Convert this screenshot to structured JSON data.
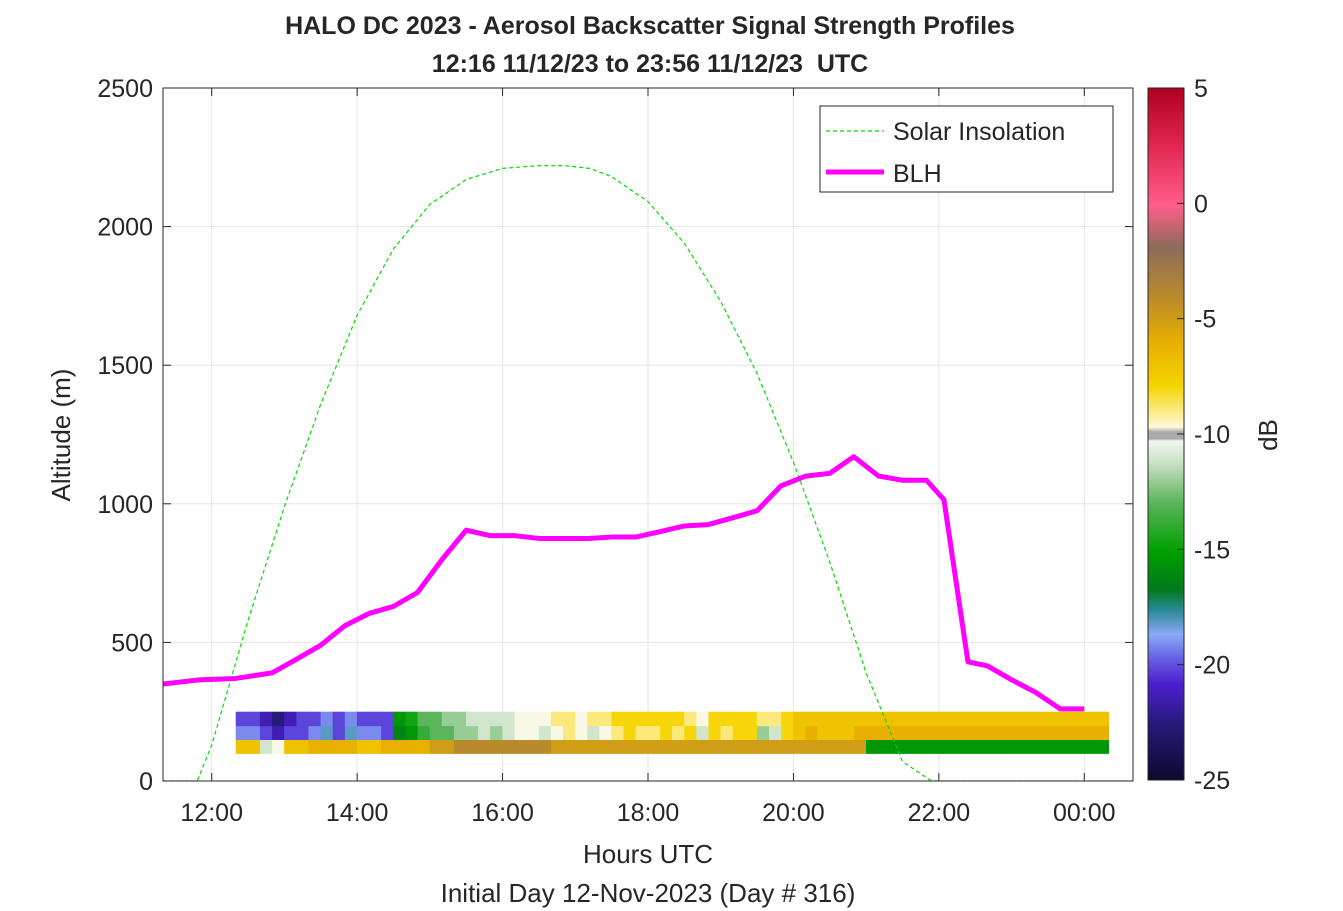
{
  "chart_data": {
    "type": "heatmap",
    "title": "HALO DC 2023 - Aerosol Backscatter Signal Strength Profiles",
    "subtitle": "12:16 11/12/23 to 23:56 11/12/23  UTC",
    "xlabel": "Hours UTC",
    "footnote": "Initial Day 12-Nov-2023 (Day # 316)",
    "ylabel": "Altitude (m)",
    "colorbar_label": "dB",
    "xlim": [
      11.33,
      24.67
    ],
    "ylim": [
      0,
      2500
    ],
    "x_ticks": [
      {
        "value": 12,
        "label": "12:00"
      },
      {
        "value": 14,
        "label": "14:00"
      },
      {
        "value": 16,
        "label": "16:00"
      },
      {
        "value": 18,
        "label": "18:00"
      },
      {
        "value": 20,
        "label": "20:00"
      },
      {
        "value": 22,
        "label": "22:00"
      },
      {
        "value": 24,
        "label": "00:00"
      }
    ],
    "y_ticks": [
      0,
      500,
      1000,
      1500,
      2000,
      2500
    ],
    "colorbar_range": [
      -25,
      5
    ],
    "colorbar_ticks": [
      -25,
      -20,
      -15,
      -10,
      -5,
      0,
      5
    ],
    "grid": true,
    "legend_position": "top-right",
    "heatmap": {
      "x_start_hours": 12.33,
      "x_step_hours": 0.1667,
      "y_start_m": 100,
      "y_step_m": 50,
      "note": "rows listed from lowest altitude (100 m) upward; values in dB",
      "rows": [
        [
          -7,
          -7,
          -11,
          -10,
          -7,
          -7,
          -6,
          -6,
          -6,
          -6,
          -7,
          -7,
          -6,
          -6,
          -6,
          -6,
          -5,
          -5,
          -4,
          -4,
          -4,
          -4,
          -4,
          -4,
          -4,
          -4,
          -5,
          -5,
          -5,
          -5,
          -5,
          -5,
          -5,
          -5,
          -5,
          -5,
          -5,
          -5,
          -5,
          -5,
          -5,
          -5,
          -5,
          -5,
          -5,
          -5,
          -5,
          -5,
          -5,
          -5,
          -5,
          -5,
          -16,
          -16,
          -16,
          -16,
          -16,
          -16,
          -16,
          -16,
          -16,
          -16,
          -16,
          -16,
          -16,
          -16,
          -16,
          -16,
          -16,
          -16,
          -16,
          -16
        ],
        [
          -20,
          -20,
          -21,
          -22,
          -21,
          -21,
          -20,
          -19,
          -21,
          -19,
          -20,
          -20,
          -21,
          -17,
          -16,
          -14,
          -13,
          -13,
          -12,
          -12,
          -11,
          -12,
          -11,
          -10,
          -10,
          -11,
          -10,
          -9,
          -10,
          -11,
          -10,
          -9,
          -8,
          -9,
          -9,
          -8,
          -9,
          -8,
          -11,
          -8,
          -9,
          -8,
          -8,
          -12,
          -11,
          -8,
          -7,
          -6,
          -7,
          -7,
          -7,
          -6,
          -6,
          -6,
          -6,
          -6,
          -6,
          -6,
          -6,
          -6,
          -6,
          -6,
          -6,
          -6,
          -6,
          -6,
          -6,
          -6,
          -6,
          -6,
          -6,
          -6
        ],
        [
          -21,
          -21,
          -22,
          -23,
          -22,
          -21,
          -21,
          -20,
          -21,
          -20,
          -21,
          -21,
          -21,
          -16,
          -15,
          -13,
          -13,
          -12,
          -12,
          -11,
          -11,
          -11,
          -11,
          -10,
          -10,
          -10,
          -9,
          -9,
          -10,
          -9,
          -9,
          -8,
          -8,
          -8,
          -8,
          -8,
          -8,
          -9,
          -10,
          -8,
          -8,
          -8,
          -8,
          -9,
          -9,
          -8,
          -7,
          -7,
          -7,
          -7,
          -7,
          -7,
          -7,
          -7,
          -7,
          -7,
          -7,
          -7,
          -7,
          -7,
          -7,
          -7,
          -7,
          -7,
          -7,
          -7,
          -7,
          -7,
          -7,
          -7,
          -7,
          -7
        ]
      ]
    },
    "series": [
      {
        "name": "Solar Insolation",
        "style": "dashed",
        "color": "#00dd00",
        "x": [
          11.33,
          11.8,
          12.0,
          12.5,
          13.0,
          13.5,
          14.0,
          14.5,
          15.0,
          15.5,
          16.0,
          16.5,
          16.85,
          17.2,
          17.5,
          18.0,
          18.5,
          19.0,
          19.5,
          20.0,
          20.5,
          21.0,
          21.5,
          21.9,
          22.0,
          24.67
        ],
        "y": [
          0,
          0,
          130,
          580,
          990,
          1360,
          1680,
          1920,
          2080,
          2170,
          2210,
          2220,
          2220,
          2210,
          2180,
          2090,
          1940,
          1730,
          1470,
          1150,
          790,
          390,
          70,
          0,
          0,
          0
        ]
      },
      {
        "name": "BLH",
        "style": "solid",
        "color": "#ff00ff",
        "x": [
          11.33,
          11.83,
          12.33,
          12.83,
          13.17,
          13.5,
          13.83,
          14.17,
          14.5,
          14.83,
          15.17,
          15.5,
          15.83,
          16.17,
          16.5,
          16.83,
          17.17,
          17.5,
          17.83,
          18.17,
          18.5,
          18.83,
          19.17,
          19.5,
          19.83,
          20.17,
          20.5,
          20.83,
          21.17,
          21.5,
          21.83,
          22.07,
          22.4,
          22.67,
          23.0,
          23.33,
          23.67,
          24.0,
          24.33
        ],
        "y": [
          350,
          365,
          370,
          390,
          440,
          490,
          560,
          605,
          630,
          680,
          800,
          905,
          885,
          885,
          875,
          875,
          875,
          880,
          880,
          900,
          920,
          925,
          950,
          975,
          1065,
          1100,
          1110,
          1170,
          1100,
          1085,
          1085,
          1015,
          430,
          415,
          365,
          320,
          260,
          260,
          null
        ]
      }
    ]
  }
}
